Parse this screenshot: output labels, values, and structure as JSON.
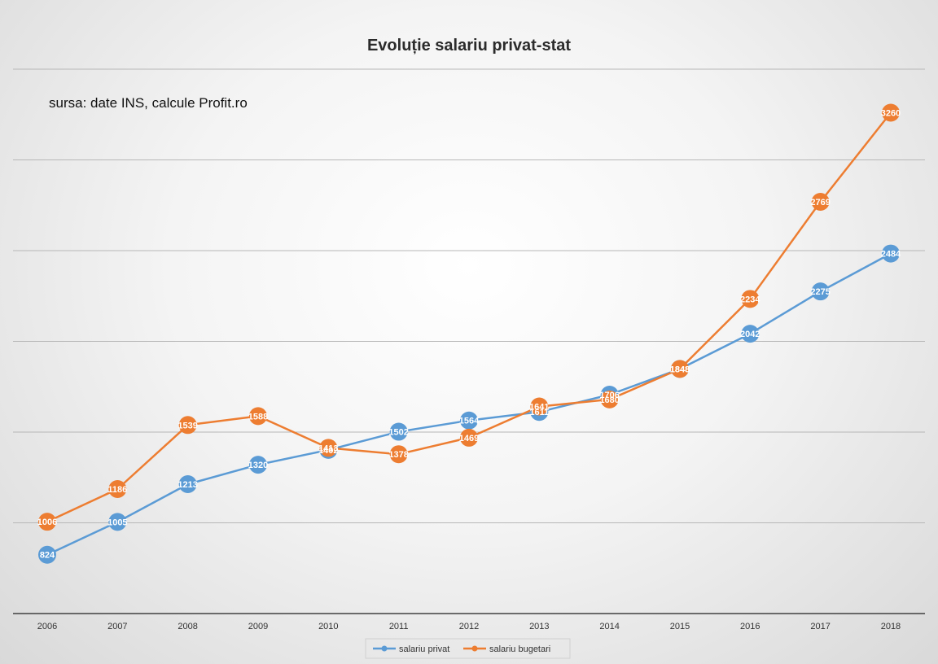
{
  "colors": {
    "privat": "#5B9BD5",
    "bugetari": "#ED7D31",
    "grid": "#b7b7b7",
    "axis": "#404040"
  },
  "chart_data": {
    "type": "line",
    "title": "Evoluție salariu privat-stat",
    "annotation": "sursa: date INS, calcule Profit.ro",
    "categories": [
      "2006",
      "2007",
      "2008",
      "2009",
      "2010",
      "2011",
      "2012",
      "2013",
      "2014",
      "2015",
      "2016",
      "2017",
      "2018"
    ],
    "series": [
      {
        "name": "salariu privat",
        "values": [
          824,
          1005,
          1213,
          1320,
          1402,
          1502,
          1564,
          1611,
          1706,
          1848,
          2042,
          2275,
          2484
        ]
      },
      {
        "name": "salariu bugetari",
        "values": [
          1006,
          1186,
          1539,
          1588,
          1413,
          1378,
          1469,
          1641,
          1680,
          1848,
          2234,
          2769,
          3260
        ]
      }
    ],
    "ylim": [
      500,
      3500
    ],
    "y_axis_labels": false,
    "grid": true,
    "legend": "bottom",
    "data_labels": true
  }
}
